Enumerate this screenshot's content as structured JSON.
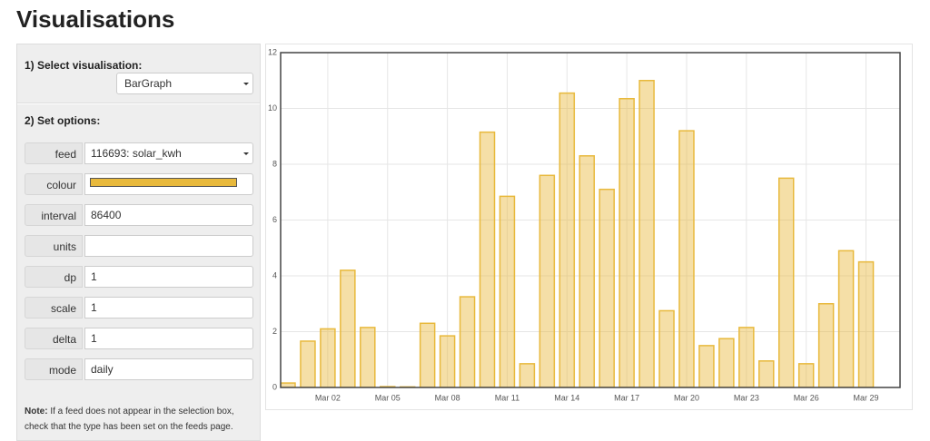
{
  "page": {
    "title": "Visualisations",
    "step1": "1) Select visualisation:",
    "visualisation": "BarGraph",
    "step2": "2) Set options:",
    "options": [
      {
        "label": "feed",
        "value": "116693: solar_kwh"
      },
      {
        "label": "colour"
      },
      {
        "label": "interval",
        "value": "86400"
      },
      {
        "label": "units"
      },
      {
        "label": "dp",
        "value": "1"
      },
      {
        "label": "scale",
        "value": "1"
      },
      {
        "label": "delta",
        "value": "1"
      },
      {
        "label": "mode",
        "value": "daily"
      }
    ],
    "note_label": "Note:",
    "note": "If a feed does not appear in the selection box, check that the type has been set on the feeds page."
  },
  "chart_data": {
    "type": "bar",
    "categories": [
      null,
      null,
      "Mar 02",
      null,
      null,
      "Mar 05",
      null,
      null,
      "Mar 08",
      null,
      null,
      "Mar 11",
      null,
      null,
      "Mar 14",
      null,
      null,
      "Mar 17",
      null,
      null,
      "Mar 20",
      null,
      null,
      "Mar 23",
      null,
      null,
      "Mar 26",
      null,
      null,
      "Mar 29"
    ],
    "values": [
      0.16,
      1.66,
      2.1,
      4.2,
      2.15,
      0.03,
      0.02,
      2.3,
      1.85,
      3.25,
      9.15,
      6.85,
      0.85,
      7.6,
      10.55,
      8.3,
      7.1,
      10.35,
      11.0,
      2.75,
      9.2,
      1.5,
      1.75,
      2.15,
      0.95,
      7.5,
      0.85,
      3.0,
      4.9,
      4.5
    ],
    "color": "#e8b93c",
    "ylim": [
      0,
      12
    ],
    "yticks": [
      0,
      2,
      4,
      6,
      8,
      10,
      12
    ],
    "grid": true
  }
}
